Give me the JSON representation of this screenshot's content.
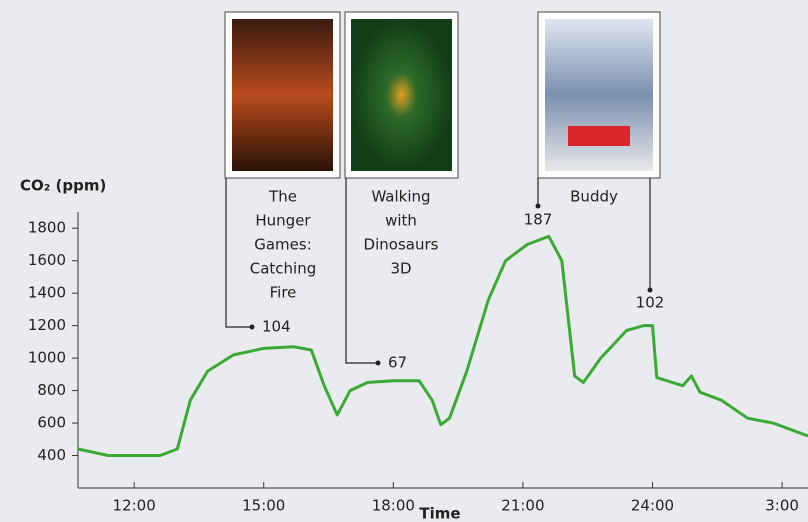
{
  "chart_data": {
    "type": "line",
    "y_label": "CO₂ (ppm)",
    "x_label": "Time",
    "xlim": [
      10.7,
      27.6
    ],
    "xticks": [
      {
        "value": 12,
        "label": "12:00"
      },
      {
        "value": 15,
        "label": "15:00"
      },
      {
        "value": 18,
        "label": "18:00"
      },
      {
        "value": 21,
        "label": "21:00"
      },
      {
        "value": 24,
        "label": "24:00"
      },
      {
        "value": 27,
        "label": "3:00"
      }
    ],
    "ylim": [
      200,
      1900
    ],
    "yticks": [
      400,
      600,
      800,
      1000,
      1200,
      1400,
      1600,
      1800
    ],
    "series": [
      {
        "color": "#3aaa35",
        "x": [
          10.7,
          11.4,
          12.6,
          13.0,
          13.3,
          13.7,
          14.3,
          15.0,
          15.7,
          16.1,
          16.4,
          16.7,
          17.0,
          17.4,
          18.0,
          18.6,
          18.9,
          19.1,
          19.3,
          19.7,
          20.2,
          20.6,
          21.1,
          21.6,
          21.9,
          22.2,
          22.4,
          22.8,
          23.4,
          23.8,
          24.0,
          24.1,
          24.7,
          24.9,
          25.1,
          25.6,
          26.2,
          26.8,
          27.6
        ],
        "values": [
          440,
          400,
          400,
          440,
          740,
          920,
          1020,
          1060,
          1070,
          1050,
          830,
          650,
          800,
          850,
          860,
          860,
          740,
          590,
          630,
          920,
          1360,
          1600,
          1700,
          1750,
          1600,
          890,
          850,
          1000,
          1170,
          1200,
          1200,
          880,
          830,
          890,
          790,
          740,
          630,
          600,
          520
        ]
      }
    ],
    "annotations": [
      {
        "title": [
          "The",
          "Hunger",
          "Games:",
          "Catching",
          "Fire"
        ],
        "label": 104
      },
      {
        "title": [
          "Walking",
          "with",
          "Dinosaurs",
          "3D"
        ],
        "label": 67
      },
      {
        "title": [
          "Buddy"
        ],
        "label": 187
      },
      {
        "label": 102
      }
    ]
  }
}
